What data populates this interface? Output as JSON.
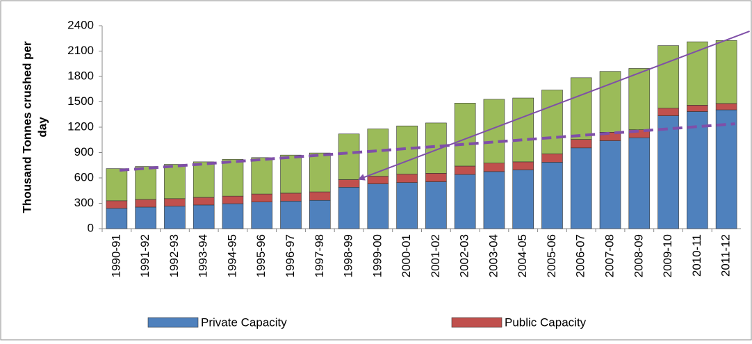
{
  "chart_data": {
    "type": "stacked_bar",
    "y_label": [
      "Thousand Tonnes crushed per",
      "day"
    ],
    "categories": [
      "1990-91",
      "1991-92",
      "1992-93",
      "1993-94",
      "1994-95",
      "1995-96",
      "1996-97",
      "1997-98",
      "1998-99",
      "1999-00",
      "2000-01",
      "2001-02",
      "2002-03",
      "2003-04",
      "2004-05",
      "2005-06",
      "2006-07",
      "2007-08",
      "2008-09",
      "2009-10",
      "2010-11",
      "2011-12"
    ],
    "series": [
      {
        "name": "Private Capacity",
        "color": "#4f81bd",
        "values": [
          240,
          255,
          265,
          280,
          295,
          315,
          325,
          335,
          490,
          530,
          545,
          555,
          640,
          675,
          695,
          785,
          955,
          1040,
          1075,
          1335,
          1385,
          1405
        ]
      },
      {
        "name": "Public Capacity",
        "color": "#c0504d",
        "values": [
          90,
          90,
          90,
          90,
          90,
          95,
          95,
          100,
          90,
          90,
          100,
          100,
          100,
          100,
          95,
          100,
          100,
          100,
          95,
          90,
          75,
          75
        ]
      },
      {
        "color": "#9bbb59",
        "values": [
          380,
          390,
          405,
          420,
          435,
          430,
          450,
          460,
          540,
          560,
          570,
          595,
          745,
          755,
          755,
          755,
          730,
          720,
          725,
          740,
          750,
          745
        ]
      }
    ],
    "trend_lines": [
      {
        "color": "#7f4fa8",
        "dashed": true,
        "x": [
          0.1,
          21.3
        ],
        "y": [
          690,
          1240
        ]
      },
      {
        "color": "#7f4fa8",
        "dashed": false,
        "arrow": true,
        "x": [
          21.8,
          8.35
        ],
        "y": [
          2335,
          585
        ]
      }
    ],
    "ylim": [
      0,
      2400
    ],
    "yticks": [
      0,
      300,
      600,
      900,
      1200,
      1500,
      1800,
      2100,
      2400
    ],
    "legend": "bottom"
  }
}
